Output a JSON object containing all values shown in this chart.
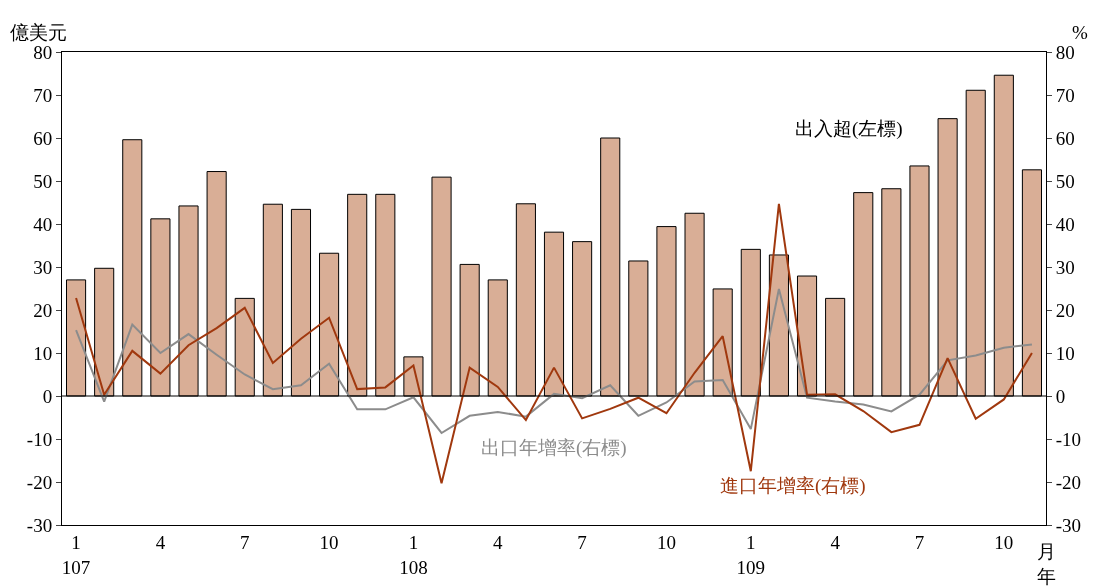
{
  "chart_data": {
    "type": "bar",
    "ylabel": "億美元",
    "y2label": "%",
    "xlabel": "月年",
    "categories": [
      "1\n107",
      null,
      null,
      "4",
      null,
      null,
      "7",
      null,
      null,
      "10",
      null,
      null,
      "1\n108",
      null,
      null,
      "4",
      null,
      null,
      "7",
      null,
      null,
      "10",
      null,
      null,
      "1\n109",
      null,
      null,
      "4",
      null,
      null,
      "7",
      null,
      null,
      "10",
      null
    ],
    "series": [
      {
        "name": "出入超(左標)",
        "color": "#d9ae96",
        "values": [
          27,
          29.7,
          59.6,
          41.2,
          44.2,
          52.2,
          22.7,
          44.6,
          43.4,
          33.2,
          46.9,
          46.9,
          9.1,
          50.9,
          30.6,
          27,
          44.7,
          38.1,
          35.9,
          60,
          31.4,
          39.4,
          42.5,
          24.9,
          34.1,
          32.8,
          27.9,
          22.7,
          47.3,
          48.2,
          53.5,
          64.5,
          71.1,
          74.6,
          52.6
        ]
      },
      {
        "name": "出口年增率(右標)",
        "type": "line",
        "axis": "y2",
        "color": "#8c8c8c",
        "values": [
          15.3,
          -1.3,
          16.6,
          10.0,
          14.4,
          9.6,
          5.0,
          1.6,
          2.5,
          7.5,
          -3.1,
          -3.1,
          -0.3,
          -8.6,
          -4.6,
          -3.7,
          -4.8,
          0.5,
          -0.5,
          2.5,
          -4.6,
          -1.5,
          3.4,
          3.7,
          -7.7,
          24.9,
          -0.4,
          -1.3,
          -2.0,
          -3.6,
          0.3,
          8.3,
          9.4,
          11.2,
          12.0
        ]
      },
      {
        "name": "進口年增率(右標)",
        "type": "line",
        "axis": "y2",
        "color": "#a0380e",
        "values": [
          22.8,
          0.3,
          10.5,
          5.2,
          11.8,
          15.8,
          20.5,
          7.7,
          13.3,
          18.2,
          1.6,
          2.0,
          7.1,
          -20.3,
          6.6,
          2.1,
          -5.6,
          6.6,
          -5.2,
          -3.0,
          -0.4,
          -4.0,
          5.4,
          13.9,
          -17.5,
          44.7,
          0.3,
          0.4,
          -3.5,
          -8.4,
          -6.7,
          8.8,
          -5.3,
          -0.8,
          10.0
        ]
      }
    ],
    "ylim": [
      -30,
      80
    ],
    "yticks": [
      -30,
      -20,
      -10,
      0,
      10,
      20,
      30,
      40,
      50,
      60,
      70,
      80
    ],
    "y2lim": [
      -30,
      80
    ],
    "y2ticks": [
      -30,
      -20,
      -10,
      0,
      10,
      20,
      30,
      40,
      50,
      60,
      70,
      80
    ],
    "ref_lines": [
      {
        "axis": "y",
        "value": 0,
        "color": "#000000"
      }
    ],
    "grid": false,
    "legend": false,
    "marker": "none",
    "line_style": "solid"
  }
}
